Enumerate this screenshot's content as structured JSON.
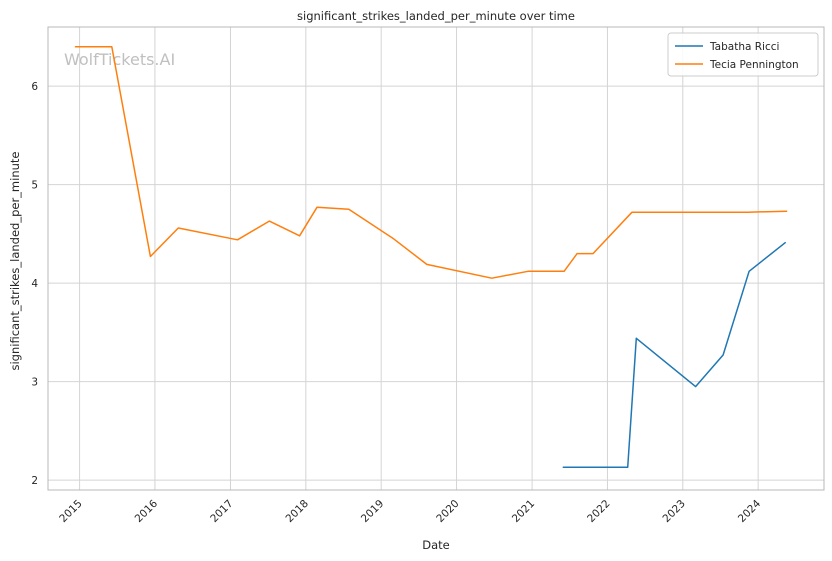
{
  "chart_data": {
    "type": "line",
    "title": "significant_strikes_landed_per_minute over time",
    "xlabel": "Date",
    "ylabel": "significant_strikes_landed_per_minute",
    "watermark": "WolfTickets.AI",
    "legend_position": "top-right",
    "grid": true,
    "x_ticks": [
      "2015",
      "2016",
      "2017",
      "2018",
      "2019",
      "2020",
      "2021",
      "2022",
      "2023",
      "2024"
    ],
    "y_ticks": [
      "2",
      "3",
      "4",
      "5",
      "6"
    ],
    "xlim": [
      "2014-08-01",
      "2024-11-15"
    ],
    "ylim": [
      1.9,
      6.6
    ],
    "series": [
      {
        "name": "Tabatha Ricci",
        "color": "#1f77b4",
        "points": [
          {
            "x": "2021-06-01",
            "y": 2.13
          },
          {
            "x": "2022-04-09",
            "y": 2.13
          },
          {
            "x": "2022-05-21",
            "y": 3.44
          },
          {
            "x": "2023-03-04",
            "y": 2.95
          },
          {
            "x": "2023-07-15",
            "y": 3.27
          },
          {
            "x": "2023-11-18",
            "y": 4.12
          },
          {
            "x": "2024-05-11",
            "y": 4.41
          }
        ]
      },
      {
        "name": "Tecia Pennington",
        "color": "#ff7f0e",
        "points": [
          {
            "x": "2014-12-12",
            "y": 6.4
          },
          {
            "x": "2015-06-06",
            "y": 6.4
          },
          {
            "x": "2015-12-10",
            "y": 4.27
          },
          {
            "x": "2016-04-23",
            "y": 4.56
          },
          {
            "x": "2017-02-04",
            "y": 4.44
          },
          {
            "x": "2017-07-08",
            "y": 4.63
          },
          {
            "x": "2017-12-02",
            "y": 4.48
          },
          {
            "x": "2018-02-24",
            "y": 4.77
          },
          {
            "x": "2018-07-28",
            "y": 4.75
          },
          {
            "x": "2019-03-02",
            "y": 4.45
          },
          {
            "x": "2019-08-10",
            "y": 4.19
          },
          {
            "x": "2020-06-20",
            "y": 4.05
          },
          {
            "x": "2020-12-12",
            "y": 4.12
          },
          {
            "x": "2021-06-05",
            "y": 4.12
          },
          {
            "x": "2021-08-07",
            "y": 4.3
          },
          {
            "x": "2021-10-23",
            "y": 4.3
          },
          {
            "x": "2022-04-30",
            "y": 4.72
          },
          {
            "x": "2023-11-11",
            "y": 4.72
          },
          {
            "x": "2024-05-18",
            "y": 4.73
          }
        ]
      }
    ]
  }
}
